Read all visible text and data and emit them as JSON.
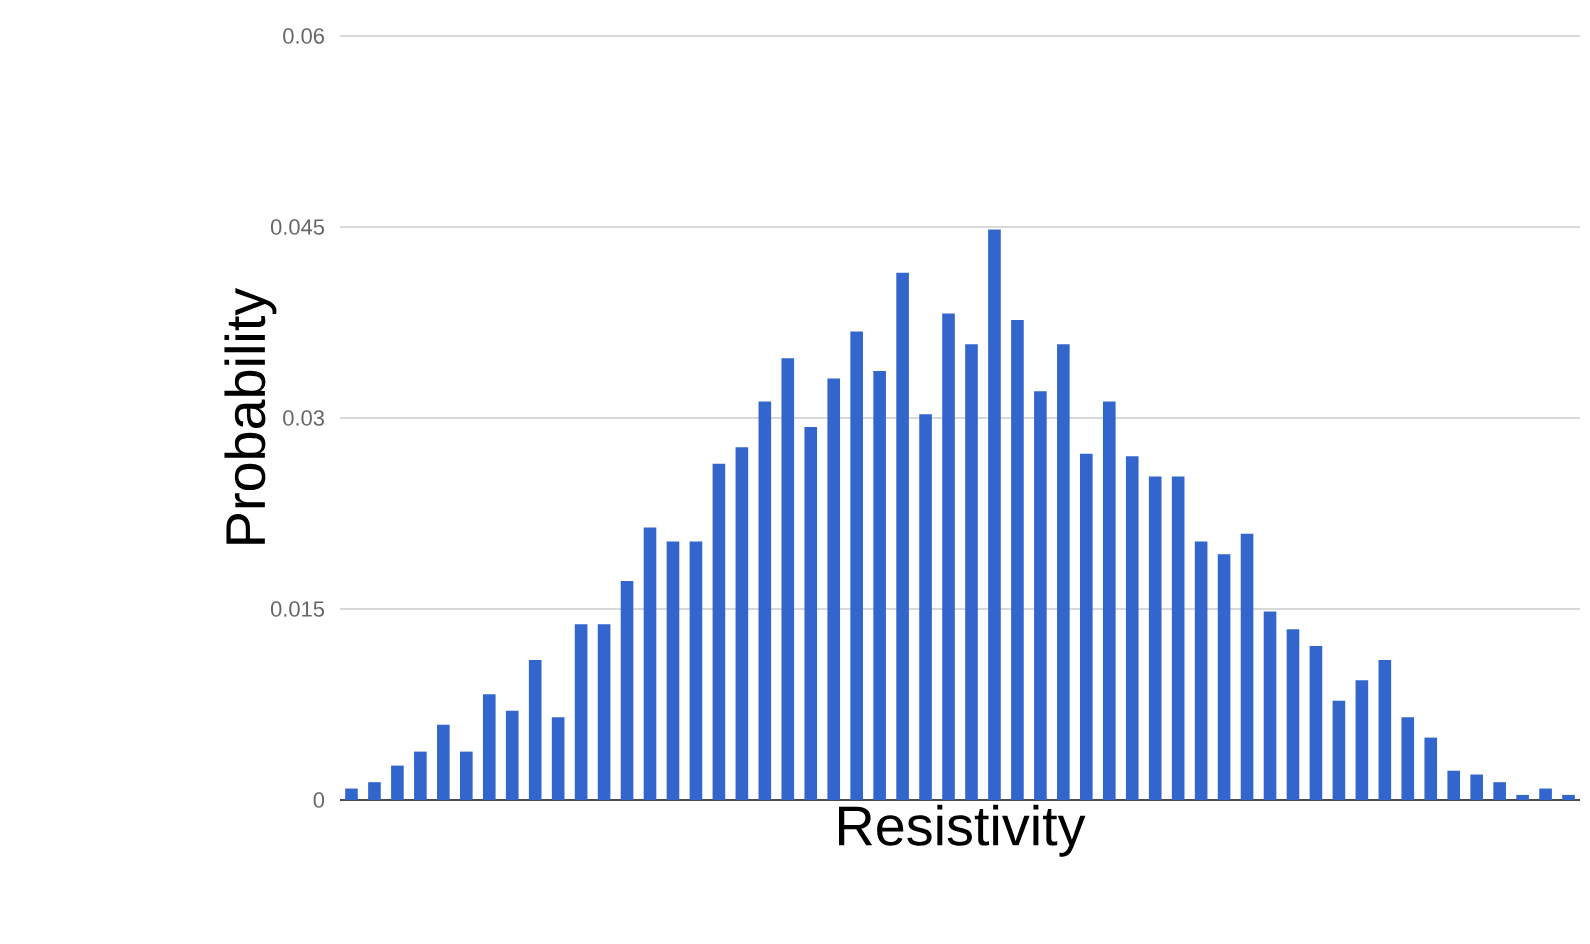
{
  "chart_data": {
    "type": "bar",
    "xlabel": "Resistivity",
    "ylabel": "Probability",
    "categories": [
      null,
      null,
      null,
      null,
      null,
      null,
      null,
      null,
      null,
      null,
      null,
      null,
      null,
      null,
      null,
      null,
      null,
      null,
      null,
      null,
      null,
      null,
      null,
      null,
      null,
      null,
      null,
      null,
      null,
      null,
      null,
      null,
      null,
      null,
      null,
      null,
      null,
      null,
      null,
      null,
      null,
      null,
      null,
      null,
      null,
      null,
      null,
      null,
      null,
      null,
      null,
      null,
      null,
      null
    ],
    "values": [
      0.0009,
      0.0014,
      0.0027,
      0.0038,
      0.0059,
      0.0038,
      0.0083,
      0.007,
      0.011,
      0.0065,
      0.0138,
      0.0138,
      0.0172,
      0.0214,
      0.0203,
      0.0203,
      0.0264,
      0.0277,
      0.0313,
      0.0347,
      0.0293,
      0.0331,
      0.0368,
      0.0337,
      0.0414,
      0.0303,
      0.0382,
      0.0358,
      0.0448,
      0.0377,
      0.0321,
      0.0358,
      0.0272,
      0.0313,
      0.027,
      0.0254,
      0.0254,
      0.0203,
      0.0193,
      0.0209,
      0.0148,
      0.0134,
      0.0121,
      0.0078,
      0.0094,
      0.011,
      0.0065,
      0.0049,
      0.0023,
      0.002,
      0.0014,
      0.0004,
      0.0009,
      0.0004
    ],
    "color": "#3366cc",
    "ylim": [
      0,
      0.06
    ],
    "yticks": [
      0,
      0.015,
      0.03,
      0.045,
      0.06
    ],
    "grid": "y",
    "tick_labels": "y"
  }
}
